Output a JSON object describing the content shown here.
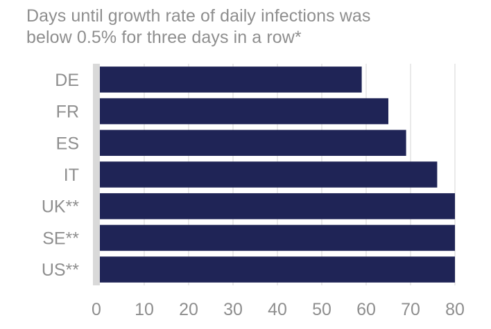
{
  "chart_data": {
    "type": "bar",
    "orientation": "horizontal",
    "title_lines": [
      "Days until growth rate of daily infections was",
      "below 0.5% for three days in a row*"
    ],
    "categories": [
      "DE",
      "FR",
      "ES",
      "IT",
      "UK**",
      "SE**",
      "US**"
    ],
    "values": [
      59,
      65,
      69,
      76,
      80,
      80,
      80
    ],
    "xlim": [
      0,
      80
    ],
    "x_ticks": [
      0,
      10,
      20,
      30,
      40,
      50,
      60,
      70,
      80
    ],
    "grid": "vertical",
    "colors": {
      "bar": "#1f2456",
      "grid": "#e3e3e3",
      "axis": "#d9d9d9",
      "text": "#8e8e8e"
    }
  }
}
